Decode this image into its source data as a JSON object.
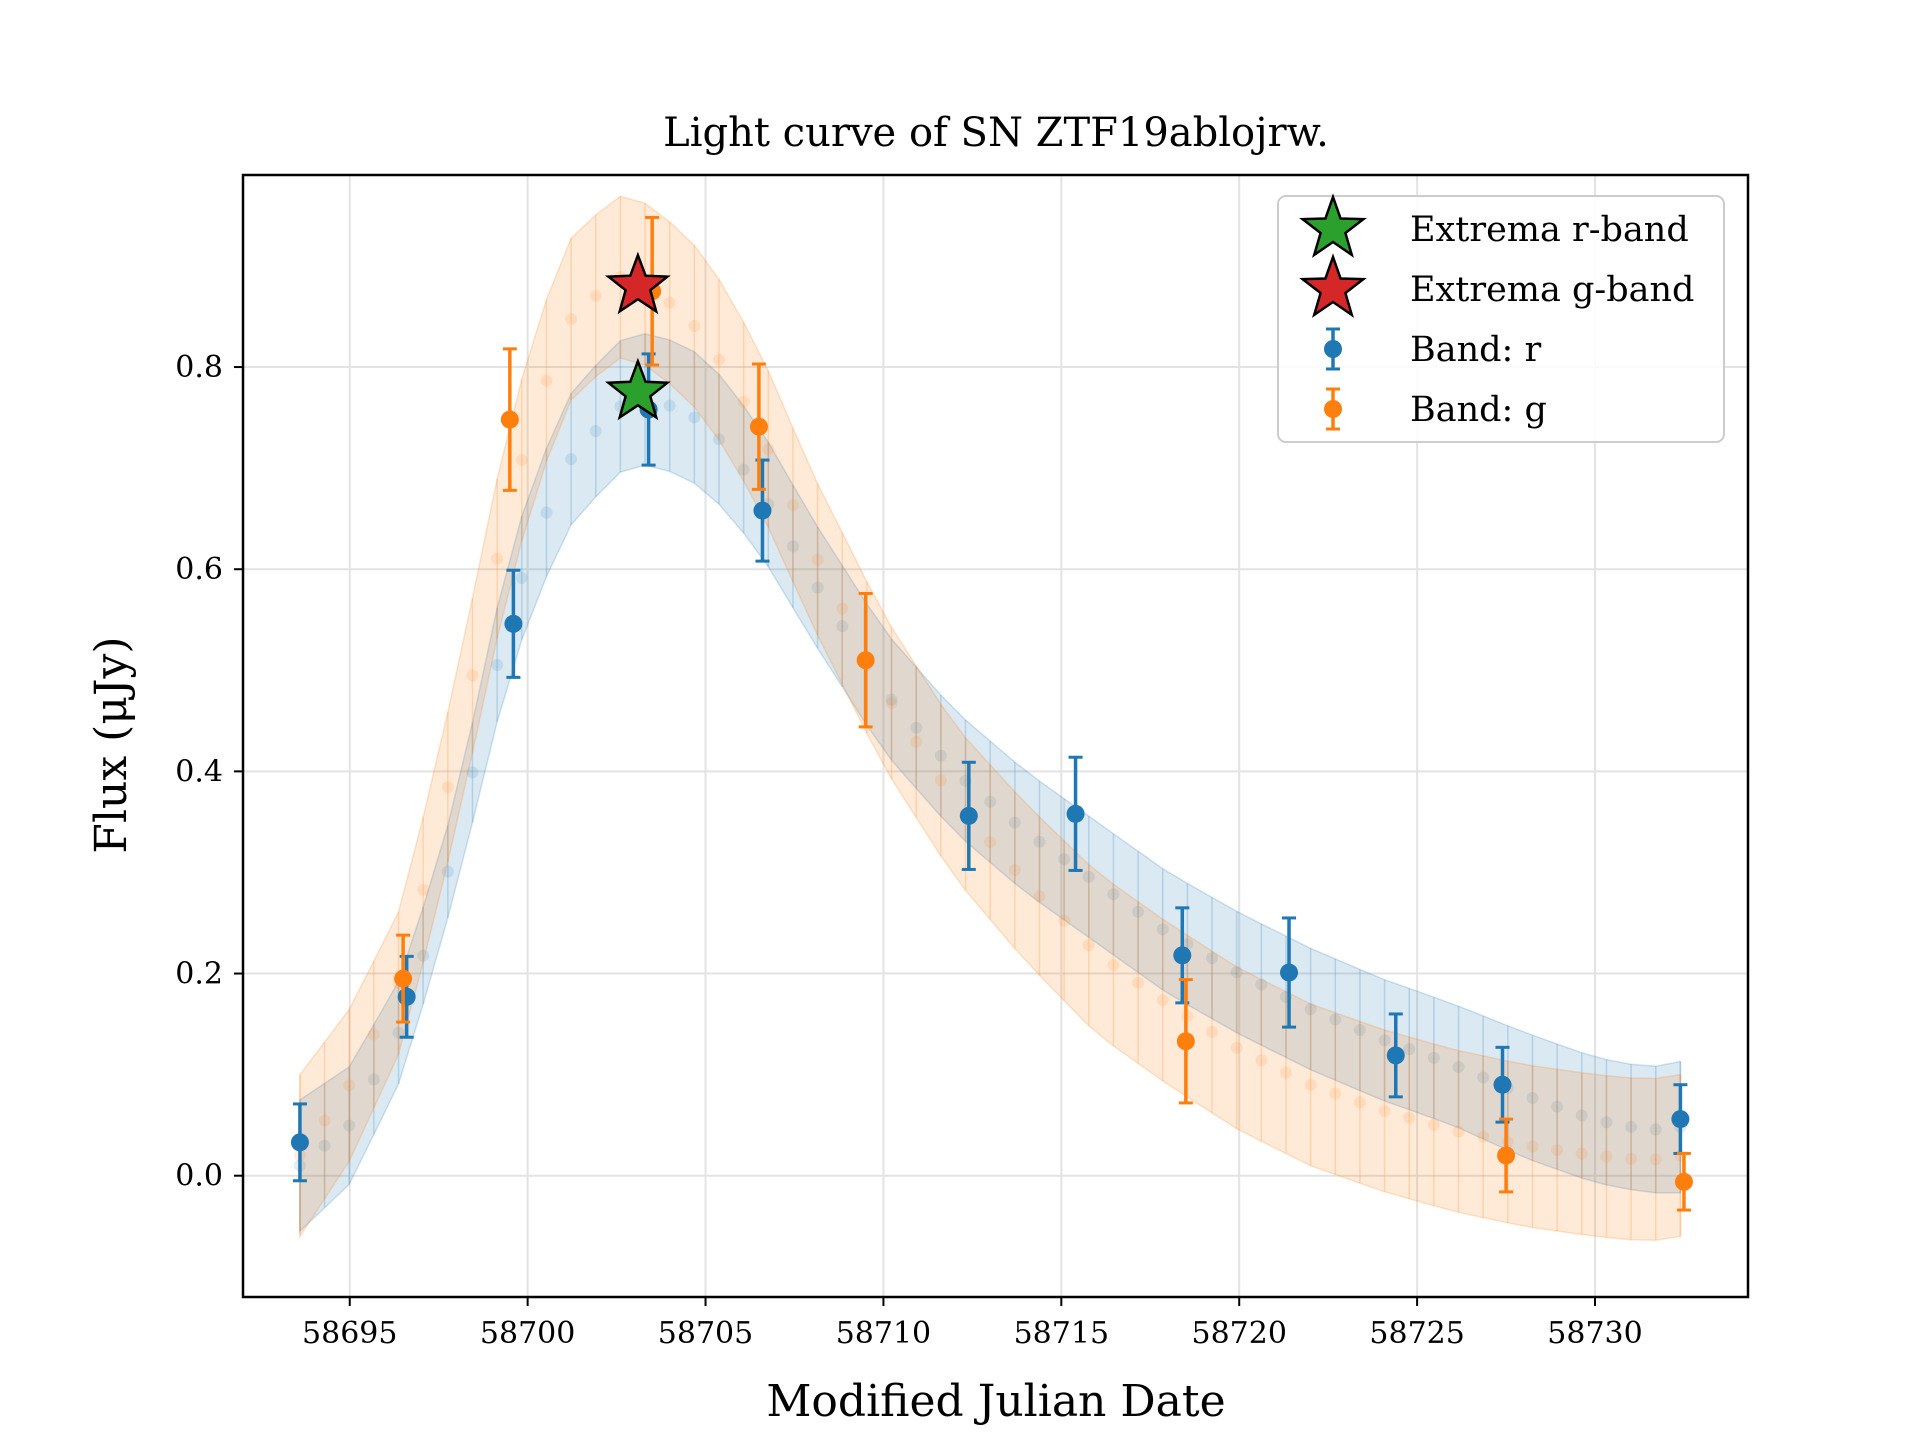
{
  "chart_data": {
    "type": "scatter",
    "title": "Light curve of SN ZTF19ablojrw.",
    "xlabel": "Modified Julian Date",
    "ylabel": "Flux (μJy)",
    "xlim": [
      58692,
      58734.3
    ],
    "ylim": [
      -0.12,
      0.99
    ],
    "xticks": [
      58695,
      58700,
      58705,
      58710,
      58715,
      58720,
      58725,
      58730
    ],
    "yticks": [
      0.0,
      0.2,
      0.4,
      0.6,
      0.8
    ],
    "xtick_labels": [
      "58695",
      "58700",
      "58705",
      "58710",
      "58715",
      "58720",
      "58725",
      "58730"
    ],
    "ytick_labels": [
      "0.0",
      "0.2",
      "0.4",
      "0.6",
      "0.8"
    ],
    "grid": true,
    "legend_position": "top-right",
    "series": [
      {
        "name": "Band: r",
        "color": "#1f77b4",
        "x": [
          58693.6,
          58696.6,
          58699.6,
          58703.4,
          58706.6,
          58712.4,
          58715.4,
          58718.4,
          58721.4,
          58724.4,
          58727.4,
          58732.4
        ],
        "y": [
          0.033,
          0.177,
          0.546,
          0.758,
          0.658,
          0.356,
          0.358,
          0.218,
          0.201,
          0.119,
          0.09,
          0.056
        ],
        "yerr": [
          0.038,
          0.04,
          0.053,
          0.055,
          0.05,
          0.053,
          0.056,
          0.047,
          0.054,
          0.041,
          0.037,
          0.034
        ]
      },
      {
        "name": "Band: g",
        "color": "#ff7f0e",
        "x": [
          58696.5,
          58699.5,
          58703.5,
          58706.5,
          58709.5,
          58718.5,
          58727.5,
          58732.5
        ],
        "y": [
          0.195,
          0.748,
          0.875,
          0.741,
          0.51,
          0.133,
          0.02,
          -0.006
        ],
        "yerr": [
          0.043,
          0.07,
          0.073,
          0.062,
          0.066,
          0.061,
          0.036,
          0.028
        ]
      }
    ],
    "extrema": [
      {
        "name": "Extrema r-band",
        "color": "#2ca02c",
        "x": 58703.1,
        "y": 0.775
      },
      {
        "name": "Extrema g-band",
        "color": "#d62728",
        "x": 58703.1,
        "y": 0.88
      }
    ],
    "model_curves": [
      {
        "band": "r",
        "color": "#1f77b4",
        "x": [
          58693.6,
          58695,
          58696.5,
          58698,
          58699.5,
          58701,
          58702.5,
          58703.5,
          58705,
          58706.5,
          58708,
          58710,
          58712,
          58714,
          58716,
          58718,
          58720,
          58722,
          58724,
          58726,
          58728,
          58730,
          58731.5,
          58732.4
        ],
        "y": [
          0.01,
          0.05,
          0.15,
          0.33,
          0.56,
          0.7,
          0.76,
          0.77,
          0.745,
          0.68,
          0.59,
          0.48,
          0.4,
          0.34,
          0.29,
          0.24,
          0.2,
          0.165,
          0.135,
          0.11,
          0.08,
          0.055,
          0.045,
          0.048
        ],
        "err": [
          0.065,
          0.058,
          0.05,
          0.045,
          0.06,
          0.065,
          0.065,
          0.065,
          0.065,
          0.062,
          0.06,
          0.06,
          0.06,
          0.06,
          0.06,
          0.06,
          0.06,
          0.06,
          0.06,
          0.06,
          0.062,
          0.062,
          0.062,
          0.065
        ]
      },
      {
        "band": "g",
        "color": "#ff7f0e",
        "x": [
          58693.6,
          58695,
          58696.5,
          58698,
          58699.5,
          58701,
          58702.5,
          58703.5,
          58705,
          58706.5,
          58708,
          58710,
          58712,
          58714,
          58716,
          58718,
          58720,
          58722,
          58724,
          58726,
          58728,
          58730,
          58731.5,
          58732.4
        ],
        "y": [
          0.02,
          0.09,
          0.2,
          0.42,
          0.67,
          0.84,
          0.89,
          0.88,
          0.83,
          0.74,
          0.62,
          0.48,
          0.37,
          0.29,
          0.22,
          0.17,
          0.125,
          0.09,
          0.065,
          0.045,
          0.03,
          0.02,
          0.015,
          0.02
        ],
        "err": [
          0.08,
          0.075,
          0.07,
          0.075,
          0.08,
          0.08,
          0.08,
          0.08,
          0.08,
          0.078,
          0.075,
          0.075,
          0.075,
          0.078,
          0.08,
          0.08,
          0.08,
          0.08,
          0.08,
          0.08,
          0.08,
          0.08,
          0.08,
          0.08
        ]
      }
    ]
  }
}
